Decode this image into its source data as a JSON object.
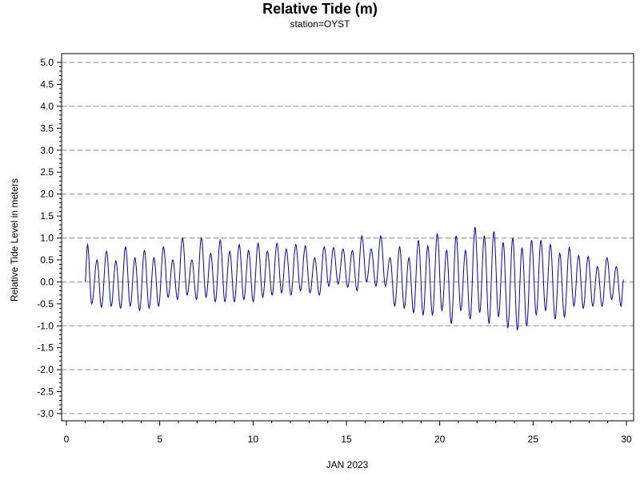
{
  "chart_data": {
    "type": "line",
    "title": "Relative Tide (m)",
    "subtitle": "station=OYST",
    "xlabel": "JAN 2023",
    "ylabel": "Relative Tide Level in meters",
    "xlim": [
      0,
      30
    ],
    "ylim": [
      -3.0,
      5.0
    ],
    "x_ticks": [
      0,
      5,
      10,
      15,
      20,
      25,
      30
    ],
    "y_ticks": [
      "5.0",
      "4.5",
      "4.0",
      "3.5",
      "3.0",
      "2.5",
      "2.0",
      "1.5",
      "1.0",
      "0.5",
      "0.0",
      "-0.5",
      "-1.0",
      "-1.5",
      "-2.0",
      "-2.5",
      "-3.0"
    ],
    "grid_lines_y": [
      5,
      4,
      3,
      2,
      1,
      0,
      -1,
      -2,
      -3
    ],
    "grid": true,
    "line_color": "#0000cc",
    "series": [
      {
        "values": [
          [
            1.0,
            0.0
          ],
          [
            1.13,
            0.85
          ],
          [
            1.36,
            -0.5
          ],
          [
            1.64,
            0.5
          ],
          [
            1.88,
            -0.58
          ],
          [
            2.15,
            0.7
          ],
          [
            2.4,
            -0.55
          ],
          [
            2.65,
            0.48
          ],
          [
            2.9,
            -0.6
          ],
          [
            3.17,
            0.8
          ],
          [
            3.42,
            -0.55
          ],
          [
            3.67,
            0.55
          ],
          [
            3.92,
            -0.65
          ],
          [
            4.18,
            0.72
          ],
          [
            4.43,
            -0.6
          ],
          [
            4.69,
            0.55
          ],
          [
            4.94,
            -0.55
          ],
          [
            5.2,
            0.8
          ],
          [
            5.45,
            -0.35
          ],
          [
            5.7,
            0.5
          ],
          [
            5.95,
            -0.4
          ],
          [
            6.22,
            1.0
          ],
          [
            6.47,
            -0.3
          ],
          [
            6.72,
            0.5
          ],
          [
            6.97,
            -0.4
          ],
          [
            7.23,
            1.0
          ],
          [
            7.48,
            -0.35
          ],
          [
            7.73,
            0.65
          ],
          [
            7.98,
            -0.45
          ],
          [
            8.24,
            0.95
          ],
          [
            8.49,
            -0.45
          ],
          [
            8.75,
            0.7
          ],
          [
            9.0,
            -0.45
          ],
          [
            9.26,
            0.85
          ],
          [
            9.51,
            -0.4
          ],
          [
            9.76,
            0.72
          ],
          [
            10.01,
            -0.45
          ],
          [
            10.27,
            0.88
          ],
          [
            10.52,
            -0.35
          ],
          [
            10.77,
            0.7
          ],
          [
            11.02,
            -0.3
          ],
          [
            11.28,
            0.88
          ],
          [
            11.53,
            -0.25
          ],
          [
            11.78,
            0.75
          ],
          [
            12.03,
            -0.3
          ],
          [
            12.29,
            0.85
          ],
          [
            12.54,
            -0.2
          ],
          [
            12.8,
            0.82
          ],
          [
            13.05,
            -0.25
          ],
          [
            13.3,
            0.55
          ],
          [
            13.55,
            -0.3
          ],
          [
            13.81,
            0.8
          ],
          [
            14.06,
            -0.1
          ],
          [
            14.31,
            0.78
          ],
          [
            14.56,
            -0.05
          ],
          [
            14.82,
            0.75
          ],
          [
            15.07,
            -0.12
          ],
          [
            15.32,
            0.72
          ],
          [
            15.57,
            -0.2
          ],
          [
            15.83,
            1.05
          ],
          [
            16.08,
            0.0
          ],
          [
            16.33,
            0.75
          ],
          [
            16.58,
            -0.1
          ],
          [
            16.84,
            1.05
          ],
          [
            17.09,
            -0.1
          ],
          [
            17.34,
            0.55
          ],
          [
            17.59,
            -0.55
          ],
          [
            17.85,
            0.8
          ],
          [
            18.1,
            -0.6
          ],
          [
            18.35,
            0.55
          ],
          [
            18.6,
            -0.7
          ],
          [
            18.86,
            0.95
          ],
          [
            19.11,
            -0.75
          ],
          [
            19.36,
            0.82
          ],
          [
            19.61,
            -0.75
          ],
          [
            19.87,
            1.1
          ],
          [
            20.12,
            -0.65
          ],
          [
            20.37,
            0.72
          ],
          [
            20.62,
            -0.95
          ],
          [
            20.88,
            1.05
          ],
          [
            21.13,
            -0.65
          ],
          [
            21.38,
            0.72
          ],
          [
            21.63,
            -0.85
          ],
          [
            21.89,
            1.25
          ],
          [
            22.14,
            -0.7
          ],
          [
            22.39,
            1.05
          ],
          [
            22.64,
            -0.95
          ],
          [
            22.9,
            1.15
          ],
          [
            23.15,
            -0.8
          ],
          [
            23.4,
            0.9
          ],
          [
            23.65,
            -1.05
          ],
          [
            23.91,
            1.0
          ],
          [
            24.16,
            -1.1
          ],
          [
            24.41,
            0.78
          ],
          [
            24.66,
            -1.0
          ],
          [
            24.92,
            0.95
          ],
          [
            25.17,
            -0.75
          ],
          [
            25.42,
            0.95
          ],
          [
            25.67,
            -0.65
          ],
          [
            25.93,
            0.85
          ],
          [
            26.18,
            -0.85
          ],
          [
            26.43,
            0.65
          ],
          [
            26.68,
            -0.8
          ],
          [
            26.94,
            0.78
          ],
          [
            27.19,
            -0.55
          ],
          [
            27.44,
            0.6
          ],
          [
            27.69,
            -0.6
          ],
          [
            27.95,
            0.58
          ],
          [
            28.2,
            -0.55
          ],
          [
            28.45,
            0.35
          ],
          [
            28.7,
            -0.55
          ],
          [
            28.96,
            0.55
          ],
          [
            29.21,
            -0.4
          ],
          [
            29.46,
            0.35
          ],
          [
            29.71,
            -0.55
          ],
          [
            29.85,
            0.05
          ]
        ]
      }
    ]
  }
}
